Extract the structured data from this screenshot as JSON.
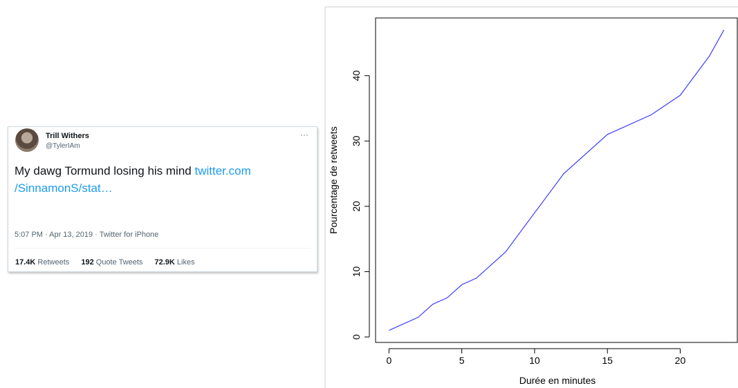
{
  "tweet": {
    "name": "Trill Withers",
    "handle": "@TylerIAm",
    "text": "My dawg Tormund losing his mind",
    "link_lines": [
      "twitter.com",
      "/SinnamonS/stat…"
    ],
    "meta": "5:07 PM · Apr 13, 2019 · Twitter for iPhone",
    "stats": [
      {
        "count": "17.4K",
        "label": "Retweets"
      },
      {
        "count": "192",
        "label": "Quote Tweets"
      },
      {
        "count": "72.9K",
        "label": "Likes"
      }
    ]
  },
  "chart_data": {
    "type": "line",
    "x_label": "Durée en minutes",
    "y_label": "Pourcentage de retweets",
    "x": [
      0,
      2,
      3,
      4,
      5,
      6,
      8,
      10,
      12,
      15,
      18,
      20,
      22,
      23
    ],
    "values": [
      1,
      3,
      5,
      6,
      8,
      9,
      13,
      19,
      25,
      31,
      34,
      37,
      43,
      47
    ],
    "color": "#3b3bff",
    "xlim": [
      -0.92,
      23.92
    ],
    "ylim": [
      -0.84,
      48.84
    ],
    "xticks": [
      0,
      5,
      10,
      15,
      20
    ],
    "yticks": [
      0,
      10,
      20,
      30,
      40
    ]
  }
}
